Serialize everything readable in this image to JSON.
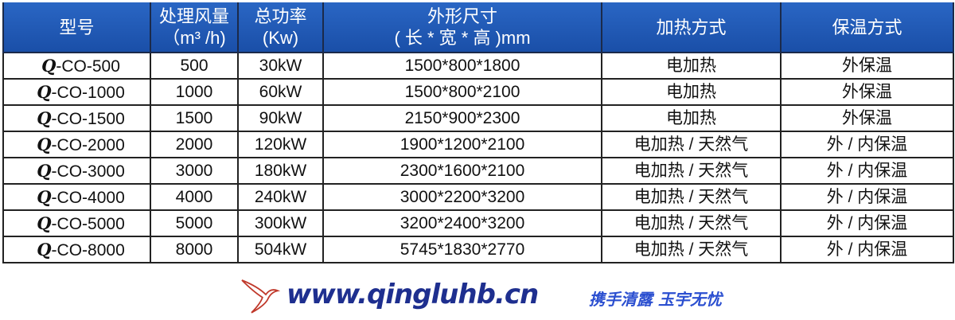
{
  "table": {
    "headers": [
      {
        "line1": "型号",
        "line2": ""
      },
      {
        "line1": "处理风量",
        "line2": "（m³ /h)"
      },
      {
        "line1": "总功率",
        "line2": "(Kw)"
      },
      {
        "line1": "外形尺寸",
        "line2": "( 长 * 宽 * 高 )mm"
      },
      {
        "line1": "加热方式",
        "line2": ""
      },
      {
        "line1": "保温方式",
        "line2": ""
      }
    ],
    "rows": [
      {
        "prefix": "Q",
        "model": "-CO-500",
        "airflow": "500",
        "power": "30kW",
        "size": "1500*800*1800",
        "heating": "电加热",
        "insulation": "外保温"
      },
      {
        "prefix": "Q",
        "model": "-CO-1000",
        "airflow": "1000",
        "power": "60kW",
        "size": "1500*800*2100",
        "heating": "电加热",
        "insulation": "外保温"
      },
      {
        "prefix": "Q",
        "model": "-CO-1500",
        "airflow": "1500",
        "power": "90kW",
        "size": "2150*900*2300",
        "heating": "电加热",
        "insulation": "外保温"
      },
      {
        "prefix": "Q",
        "model": "-CO-2000",
        "airflow": "2000",
        "power": "120kW",
        "size": "1900*1200*2100",
        "heating": "电加热 / 天然气",
        "insulation": "外 / 内保温"
      },
      {
        "prefix": "Q",
        "model": "-CO-3000",
        "airflow": "3000",
        "power": "180kW",
        "size": "2300*1600*2100",
        "heating": "电加热 / 天然气",
        "insulation": "外 / 内保温"
      },
      {
        "prefix": "Q",
        "model": "-CO-4000",
        "airflow": "4000",
        "power": "240kW",
        "size": "3000*2200*3200",
        "heating": "电加热 / 天然气",
        "insulation": "外 / 内保温"
      },
      {
        "prefix": "Q",
        "model": "-CO-5000",
        "airflow": "5000",
        "power": "300kW",
        "size": "3200*2400*3200",
        "heating": "电加热 / 天然气",
        "insulation": "外 / 内保温"
      },
      {
        "prefix": "Q",
        "model": "-CO-8000",
        "airflow": "8000",
        "power": "504kW",
        "size": "5745*1830*2770",
        "heating": "电加热 / 天然气",
        "insulation": "外 / 内保温"
      }
    ]
  },
  "watermark": {
    "url": "www.qingluhb.cn",
    "slogan": "携手清露 玉宇无忧",
    "icon": "bird-logo-icon"
  },
  "colors": {
    "header_bg": "#1f58b4",
    "header_text": "#ffffff",
    "watermark_text": "#1e2f8f",
    "watermark_bird": "#c0392b"
  }
}
